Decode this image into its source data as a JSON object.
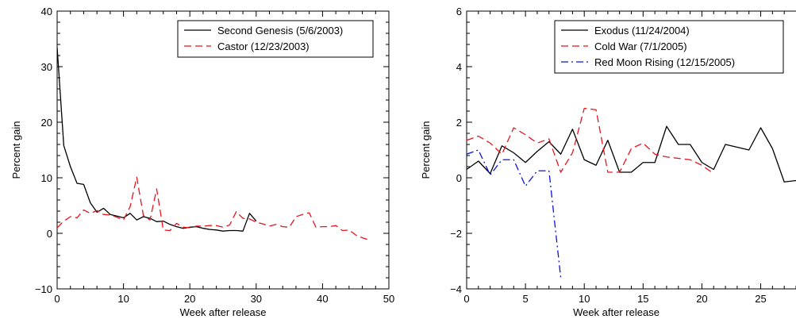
{
  "chart_data": [
    {
      "type": "line",
      "xlabel": "Week after release",
      "ylabel": "Percent gain",
      "xlim": [
        0,
        50
      ],
      "ylim": [
        -10,
        40
      ],
      "xticks": [
        0,
        10,
        20,
        30,
        40,
        50
      ],
      "yticks": [
        -10,
        0,
        10,
        20,
        30,
        40
      ],
      "xtick_labels": [
        "0",
        "10",
        "20",
        "30",
        "40",
        "50"
      ],
      "ytick_labels": [
        "−10",
        "0",
        "10",
        "20",
        "30",
        "40"
      ],
      "legend": "top-right",
      "grid": false,
      "series": [
        {
          "name": "Second Genesis (5/6/2003)",
          "color": "#000000",
          "dash": "solid",
          "x": [
            0,
            1,
            2,
            3,
            4,
            5,
            6,
            7,
            8,
            9,
            10,
            11,
            12,
            13,
            14,
            15,
            16,
            17,
            18,
            19,
            20,
            21,
            22,
            23,
            24,
            25,
            26,
            27,
            28,
            29,
            30
          ],
          "y": [
            33.5,
            15.8,
            12,
            9,
            8.8,
            5.5,
            3.8,
            4.5,
            3.4,
            3.1,
            2.8,
            3.6,
            2.4,
            3.0,
            2.7,
            2.1,
            2.2,
            1.6,
            1.2,
            0.9,
            1.1,
            1.2,
            0.9,
            0.7,
            0.6,
            0.4,
            0.5,
            0.5,
            0.4,
            3.6,
            2.2
          ]
        },
        {
          "name": "Castor (12/23/2003)",
          "color": "#e8141c",
          "dash": "dashed",
          "x": [
            0,
            1,
            2,
            3,
            4,
            5,
            6,
            7,
            8,
            9,
            10,
            11,
            12,
            13,
            14,
            15,
            16,
            17,
            18,
            19,
            20,
            21,
            22,
            23,
            24,
            25,
            26,
            27,
            28,
            29,
            30,
            31,
            32,
            33,
            34,
            35,
            36,
            37,
            38,
            39,
            40,
            41,
            42,
            43,
            44,
            45,
            46,
            47
          ],
          "y": [
            1.0,
            2.2,
            3.0,
            2.8,
            4.2,
            3.6,
            4.1,
            3.4,
            3.3,
            2.9,
            2.4,
            4.8,
            10.1,
            3.2,
            2.4,
            8.0,
            0.6,
            0.5,
            1.8,
            1.1,
            1.0,
            1.3,
            1.3,
            1.4,
            1.4,
            1.1,
            1.5,
            3.9,
            2.7,
            2.6,
            2.0,
            1.7,
            1.3,
            1.6,
            1.2,
            1.1,
            3.0,
            3.4,
            3.7,
            1.1,
            1.2,
            1.2,
            1.4,
            0.5,
            0.6,
            -0.3,
            -0.8,
            -1.2
          ]
        }
      ]
    },
    {
      "type": "line",
      "xlabel": "Week after release",
      "ylabel": "Percent gain",
      "xlim": [
        0,
        28
      ],
      "ylim": [
        -4,
        6
      ],
      "xticks": [
        0,
        5,
        10,
        15,
        20,
        25
      ],
      "yticks": [
        -4,
        -2,
        0,
        2,
        4,
        6
      ],
      "xtick_labels": [
        "0",
        "5",
        "10",
        "15",
        "20",
        "25"
      ],
      "ytick_labels": [
        "−4",
        "−2",
        "0",
        "2",
        "4",
        "6"
      ],
      "legend": "top-right",
      "grid": false,
      "series": [
        {
          "name": "Exodus (11/24/2004)",
          "color": "#000000",
          "dash": "solid",
          "x": [
            0,
            1,
            2,
            3,
            4,
            5,
            6,
            7,
            8,
            9,
            10,
            11,
            12,
            13,
            14,
            15,
            16,
            17,
            18,
            19,
            20,
            21,
            22,
            24,
            25,
            26,
            27,
            28
          ],
          "y": [
            0.3,
            0.6,
            0.15,
            1.15,
            0.9,
            0.55,
            0.95,
            1.3,
            0.85,
            1.75,
            0.65,
            0.45,
            1.35,
            0.2,
            0.2,
            0.55,
            0.55,
            1.85,
            1.2,
            1.2,
            0.55,
            0.3,
            1.2,
            1.0,
            1.8,
            1.05,
            -0.15,
            -0.1
          ]
        },
        {
          "name": "Cold War (7/1/2005)",
          "color": "#e8141c",
          "dash": "dashed",
          "x": [
            0,
            1,
            2,
            3,
            4,
            5,
            6,
            7,
            8,
            9,
            10,
            11,
            12,
            13,
            14,
            15,
            16,
            17,
            18,
            19,
            20,
            21
          ],
          "y": [
            1.35,
            1.5,
            1.25,
            0.85,
            1.8,
            1.55,
            1.25,
            1.4,
            0.2,
            0.9,
            2.5,
            2.45,
            0.2,
            0.2,
            1.05,
            1.25,
            0.85,
            0.75,
            0.7,
            0.65,
            0.45,
            0.15
          ]
        },
        {
          "name": "Red Moon Rising (12/15/2005)",
          "color": "#0a14d8",
          "dash": "dashdot",
          "x": [
            0,
            1,
            2,
            3,
            4,
            5,
            6,
            7,
            8
          ],
          "y": [
            0.85,
            1.0,
            0.1,
            0.65,
            0.65,
            -0.3,
            0.25,
            0.25,
            -3.6
          ]
        }
      ]
    }
  ]
}
